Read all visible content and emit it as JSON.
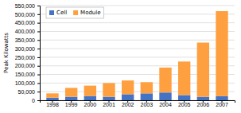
{
  "chart_data": {
    "type": "bar",
    "stacked": true,
    "categories": [
      "1998",
      "1999",
      "2000",
      "2001",
      "2002",
      "2003",
      "2004",
      "2005",
      "2006",
      "2007"
    ],
    "series": [
      {
        "name": "Cell",
        "color": "#4472C4",
        "values": [
          15000,
          20000,
          25000,
          20000,
          35000,
          40000,
          45000,
          30000,
          20000,
          23535
        ]
      },
      {
        "name": "Module",
        "color": "#FFA040",
        "values": [
          25000,
          52000,
          60000,
          80000,
          80000,
          65000,
          145000,
          195000,
          315000,
          494148
        ]
      }
    ],
    "ylabel": "Peak Kilowatts",
    "ylim": [
      0,
      550000
    ],
    "yticks": [
      0,
      {
        "value": 50000,
        "label": "50,000"
      },
      {
        "value": 100000,
        "label": "100,000"
      },
      {
        "value": 150000,
        "label": "150,000"
      },
      {
        "value": 200000,
        "label": "200,000"
      },
      {
        "value": 250000,
        "label": "250,000"
      },
      {
        "value": 300000,
        "label": "300,000"
      },
      {
        "value": 350000,
        "label": "350,000"
      },
      {
        "value": 400000,
        "label": "400,000"
      },
      {
        "value": 450000,
        "label": "450,000"
      },
      {
        "value": 500000,
        "label": "500,000"
      },
      {
        "value": 550000,
        "label": "550,000"
      }
    ],
    "grid": true,
    "legend": "upper-left"
  }
}
